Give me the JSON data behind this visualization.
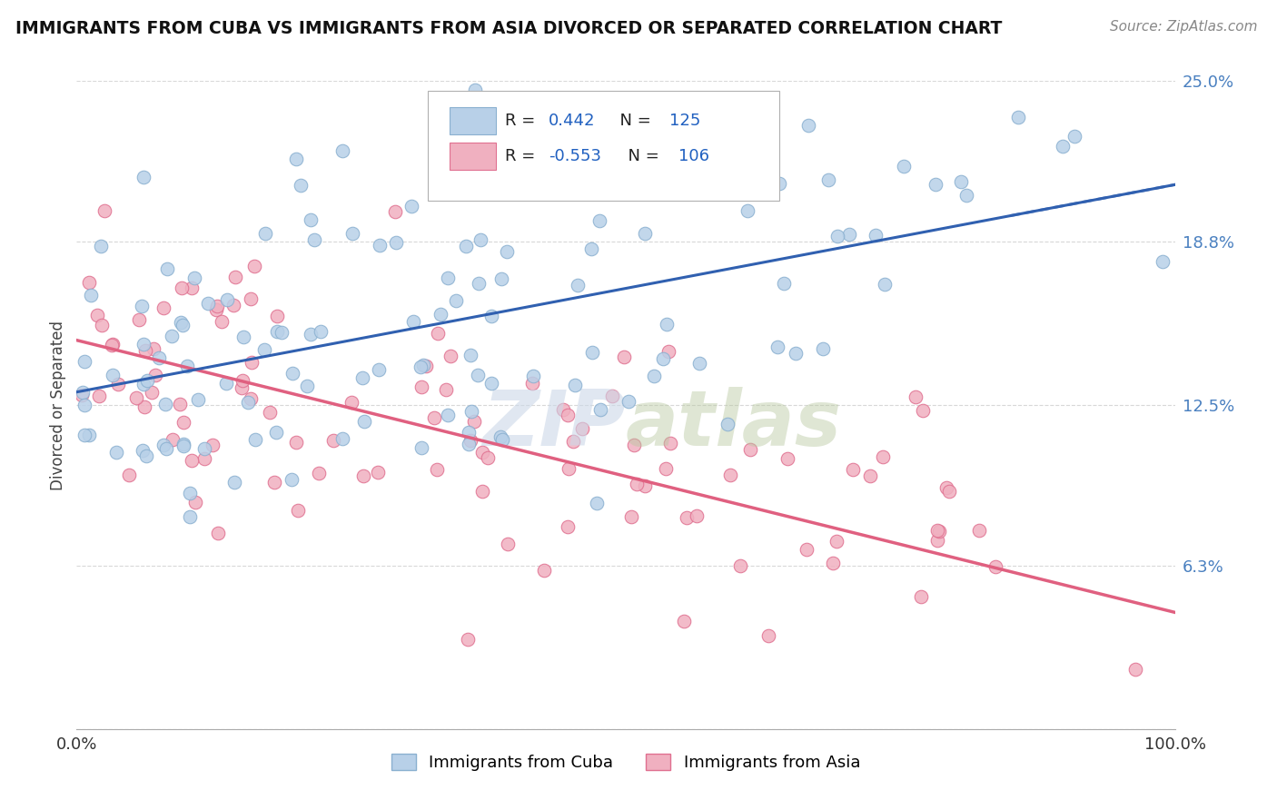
{
  "title": "IMMIGRANTS FROM CUBA VS IMMIGRANTS FROM ASIA DIVORCED OR SEPARATED CORRELATION CHART",
  "source": "Source: ZipAtlas.com",
  "ylabel": "Divorced or Separated",
  "xmin": 0.0,
  "xmax": 1.0,
  "ymin": 0.0,
  "ymax": 0.25,
  "ytick_vals": [
    0.0,
    0.063,
    0.125,
    0.188,
    0.25
  ],
  "ytick_labels": [
    "",
    "6.3%",
    "12.5%",
    "18.8%",
    "25.0%"
  ],
  "xtick_vals": [
    0.0,
    1.0
  ],
  "xtick_labels": [
    "0.0%",
    "100.0%"
  ],
  "blue_color": "#b8d0e8",
  "blue_edge": "#8ab0d0",
  "pink_color": "#f0b0c0",
  "pink_edge": "#e07090",
  "blue_line_color": "#3060b0",
  "pink_line_color": "#e06080",
  "blue_r": 0.442,
  "blue_n": 125,
  "pink_r": -0.553,
  "pink_n": 106,
  "blue_intercept": 0.13,
  "blue_slope": 0.08,
  "pink_intercept": 0.15,
  "pink_slope": -0.105,
  "legend_label1": "Immigrants from Cuba",
  "legend_label2": "Immigrants from Asia",
  "grid_color": "#d8d8d8",
  "background_color": "#ffffff",
  "watermark_color": "#ccd8e8",
  "ytick_color": "#4a80c0",
  "legend_text_color": "#1a2a6a",
  "legend_val_color": "#2060c0"
}
